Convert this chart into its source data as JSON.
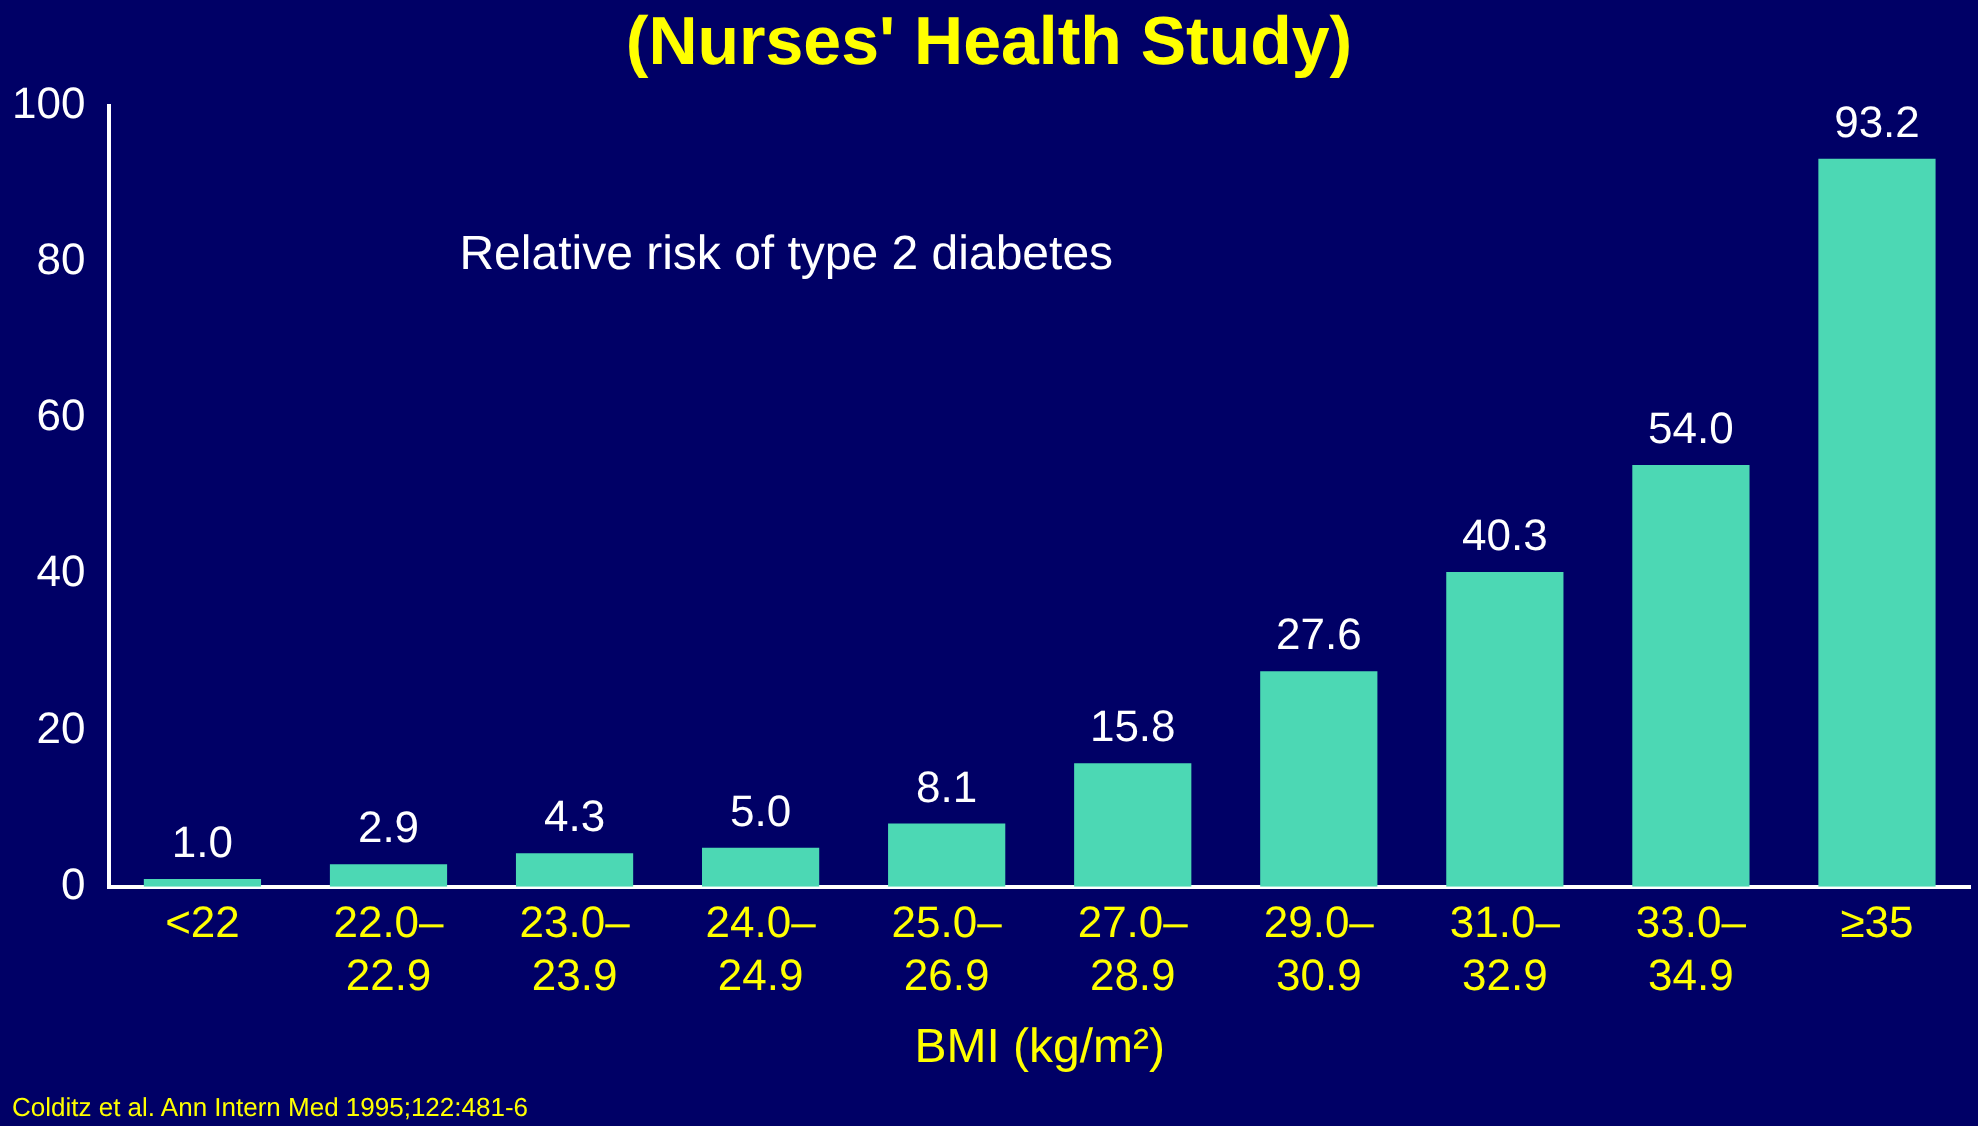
{
  "chart_data": {
    "type": "bar",
    "title": "(Nurses' Health Study)",
    "categories": [
      "<22",
      "22.0–22.9",
      "23.0–23.9",
      "24.0–24.9",
      "25.0–26.9",
      "27.0–28.9",
      "29.0–30.9",
      "31.0–32.9",
      "33.0–34.9",
      "≥35"
    ],
    "values": [
      1.0,
      2.9,
      4.3,
      5.0,
      8.1,
      15.8,
      27.6,
      40.3,
      54.0,
      93.2
    ],
    "color": "#4cd8b4",
    "value_labels": [
      "1.0",
      "2.9",
      "4.3",
      "5.0",
      "8.1",
      "15.8",
      "27.6",
      "40.3",
      "54.0",
      "93.2"
    ],
    "xlabel": "BMI (kg/m²)",
    "ylim": [
      0,
      100
    ],
    "yticks": [
      0,
      20,
      40,
      60,
      80,
      100
    ],
    "grid": false,
    "legend": false,
    "annotations": [
      "Relative risk of type 2 diabetes",
      "Colditz et al. Ann Intern Med 1995;122:481-6"
    ]
  }
}
